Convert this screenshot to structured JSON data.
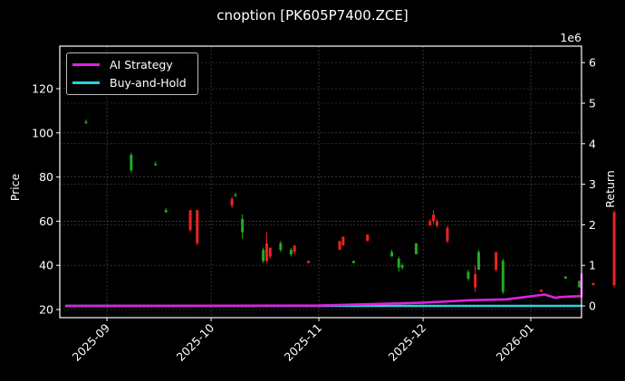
{
  "chart_data": {
    "type": "candlestick+line",
    "title": "cnoption [PK605P7400.ZCE]",
    "xlabel": "",
    "ylabel_left": "Price",
    "ylabel_right": "Return",
    "right_axis_multiplier": "1e6",
    "x_ticks": [
      "2025-09",
      "2025-10",
      "2025-11",
      "2025-12",
      "2026-01"
    ],
    "y_ticks_left": [
      20,
      40,
      60,
      80,
      100,
      120
    ],
    "y_ticks_right": [
      0,
      1,
      2,
      3,
      4,
      5,
      6
    ],
    "ylim_left": [
      16,
      139
    ],
    "ylim_right": [
      -0.3,
      6.3
    ],
    "grid": true,
    "legend_position": "upper left",
    "legend": [
      {
        "name": "AI Strategy",
        "color": "#dd22dd"
      },
      {
        "name": "Buy-and-Hold",
        "color": "#22d4e0"
      }
    ],
    "colors": {
      "up": "#22aa22",
      "down": "#ee2222",
      "background": "#000000"
    },
    "candles": [
      {
        "date": "2025-08-26",
        "open": 105,
        "high": 106,
        "low": 104,
        "close": 105
      },
      {
        "date": "2025-09-08",
        "open": 83,
        "high": 91,
        "low": 82,
        "close": 90
      },
      {
        "date": "2025-09-15",
        "open": 86,
        "high": 87,
        "low": 85,
        "close": 86
      },
      {
        "date": "2025-09-18",
        "open": 64,
        "high": 66,
        "low": 64,
        "close": 65
      },
      {
        "date": "2025-09-25",
        "open": 65,
        "high": 65,
        "low": 55,
        "close": 56
      },
      {
        "date": "2025-09-27",
        "open": 65,
        "high": 65,
        "low": 49,
        "close": 50
      },
      {
        "date": "2025-10-07",
        "open": 70,
        "high": 71,
        "low": 66,
        "close": 67
      },
      {
        "date": "2025-10-08",
        "open": 72,
        "high": 73,
        "low": 71,
        "close": 72
      },
      {
        "date": "2025-10-10",
        "open": 55,
        "high": 63,
        "low": 52,
        "close": 61
      },
      {
        "date": "2025-10-16",
        "open": 42,
        "high": 48,
        "low": 41,
        "close": 47
      },
      {
        "date": "2025-10-17",
        "open": 50,
        "high": 55,
        "low": 41,
        "close": 42
      },
      {
        "date": "2025-10-18",
        "open": 48,
        "high": 48,
        "low": 43,
        "close": 44
      },
      {
        "date": "2025-10-21",
        "open": 47,
        "high": 51,
        "low": 46,
        "close": 50
      },
      {
        "date": "2025-10-24",
        "open": 45,
        "high": 48,
        "low": 44,
        "close": 47
      },
      {
        "date": "2025-10-25",
        "open": 49,
        "high": 49,
        "low": 45,
        "close": 46
      },
      {
        "date": "2025-10-29",
        "open": 42,
        "high": 42,
        "low": 41,
        "close": 41
      },
      {
        "date": "2025-11-07",
        "open": 51,
        "high": 51,
        "low": 47,
        "close": 47
      },
      {
        "date": "2025-11-08",
        "open": 53,
        "high": 53,
        "low": 49,
        "close": 49
      },
      {
        "date": "2025-11-11",
        "open": 41,
        "high": 42,
        "low": 41,
        "close": 42
      },
      {
        "date": "2025-11-15",
        "open": 54,
        "high": 54,
        "low": 51,
        "close": 51
      },
      {
        "date": "2025-11-22",
        "open": 44,
        "high": 47,
        "low": 44,
        "close": 46
      },
      {
        "date": "2025-11-24",
        "open": 39,
        "high": 44,
        "low": 37,
        "close": 43
      },
      {
        "date": "2025-11-25",
        "open": 39,
        "high": 41,
        "low": 38,
        "close": 40
      },
      {
        "date": "2025-11-29",
        "open": 45,
        "high": 50,
        "low": 45,
        "close": 50
      },
      {
        "date": "2025-12-03",
        "open": 60,
        "high": 61,
        "low": 58,
        "close": 58
      },
      {
        "date": "2025-12-04",
        "open": 63,
        "high": 65,
        "low": 59,
        "close": 60
      },
      {
        "date": "2025-12-05",
        "open": 60,
        "high": 61,
        "low": 57,
        "close": 58
      },
      {
        "date": "2025-12-08",
        "open": 57,
        "high": 58,
        "low": 50,
        "close": 51
      },
      {
        "date": "2025-12-14",
        "open": 34,
        "high": 38,
        "low": 33,
        "close": 37
      },
      {
        "date": "2025-12-16",
        "open": 36,
        "high": 40,
        "low": 28,
        "close": 30
      },
      {
        "date": "2025-12-17",
        "open": 38,
        "high": 47,
        "low": 38,
        "close": 46
      },
      {
        "date": "2025-12-22",
        "open": 46,
        "high": 46,
        "low": 37,
        "close": 38
      },
      {
        "date": "2025-12-24",
        "open": 28,
        "high": 43,
        "low": 27,
        "close": 42
      },
      {
        "date": "2026-01-04",
        "open": 29,
        "high": 29,
        "low": 28,
        "close": 28
      },
      {
        "date": "2026-01-11",
        "open": 34,
        "high": 35,
        "low": 34,
        "close": 35
      },
      {
        "date": "2026-01-15",
        "open": 30,
        "high": 33,
        "low": 30,
        "close": 33
      },
      {
        "date": "2026-01-19",
        "open": 32,
        "high": 32,
        "low": 31,
        "close": 31
      },
      {
        "date": "2026-01-25",
        "open": 64,
        "high": 65,
        "low": 30,
        "close": 31
      },
      {
        "date": "2026-02-02",
        "open": 70,
        "high": 71,
        "low": 45,
        "close": 48
      },
      {
        "date": "2026-02-03",
        "open": 52,
        "high": 64,
        "low": 49,
        "close": 63
      },
      {
        "date": "2026-02-04",
        "open": 48,
        "high": 58,
        "low": 47,
        "close": 56
      }
    ],
    "series": [
      {
        "name": "AI Strategy",
        "x": [
          "2025-08-20",
          "2025-11-01",
          "2025-11-15",
          "2025-12-01",
          "2025-12-15",
          "2025-12-25",
          "2026-01-05",
          "2026-01-08",
          "2026-01-10",
          "2026-01-18",
          "2026-01-25",
          "2026-01-31",
          "2026-02-02",
          "2026-02-04",
          "2026-02-05"
        ],
        "values": [
          0.0,
          0.01,
          0.04,
          0.08,
          0.14,
          0.16,
          0.28,
          0.2,
          0.22,
          0.24,
          0.5,
          0.52,
          0.65,
          0.66,
          0.8
        ]
      },
      {
        "name": "Buy-and-Hold",
        "x": [
          "2025-08-20",
          "2026-02-05"
        ],
        "values": [
          0.0,
          0.0
        ]
      }
    ]
  }
}
